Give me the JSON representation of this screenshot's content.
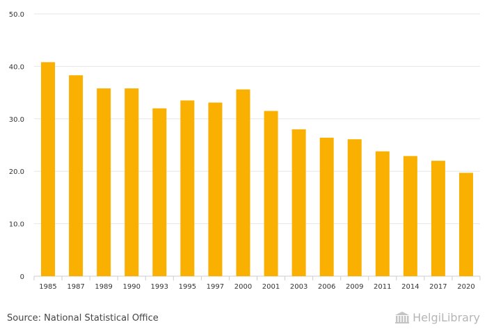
{
  "chart_data": {
    "type": "bar",
    "categories": [
      "1985",
      "1987",
      "1989",
      "1990",
      "1993",
      "1995",
      "1997",
      "2000",
      "2001",
      "2003",
      "2006",
      "2009",
      "2011",
      "2014",
      "2017",
      "2020"
    ],
    "values": [
      40.8,
      38.3,
      35.8,
      35.8,
      32.0,
      33.5,
      33.1,
      35.6,
      31.5,
      28.0,
      26.4,
      26.1,
      23.8,
      22.9,
      22.0,
      19.7
    ],
    "ylim": [
      0,
      50
    ],
    "yticks": [
      0,
      10,
      20,
      30,
      40,
      50
    ],
    "ytick_labels": [
      "0",
      "10.0",
      "20.0",
      "30.0",
      "40.0",
      "50.0"
    ],
    "bar_color": "#F9B000",
    "grid": true
  },
  "source": "Source: National Statistical Office",
  "logo": {
    "text": "HelgiLibrary",
    "icon": "library-columns-icon"
  }
}
